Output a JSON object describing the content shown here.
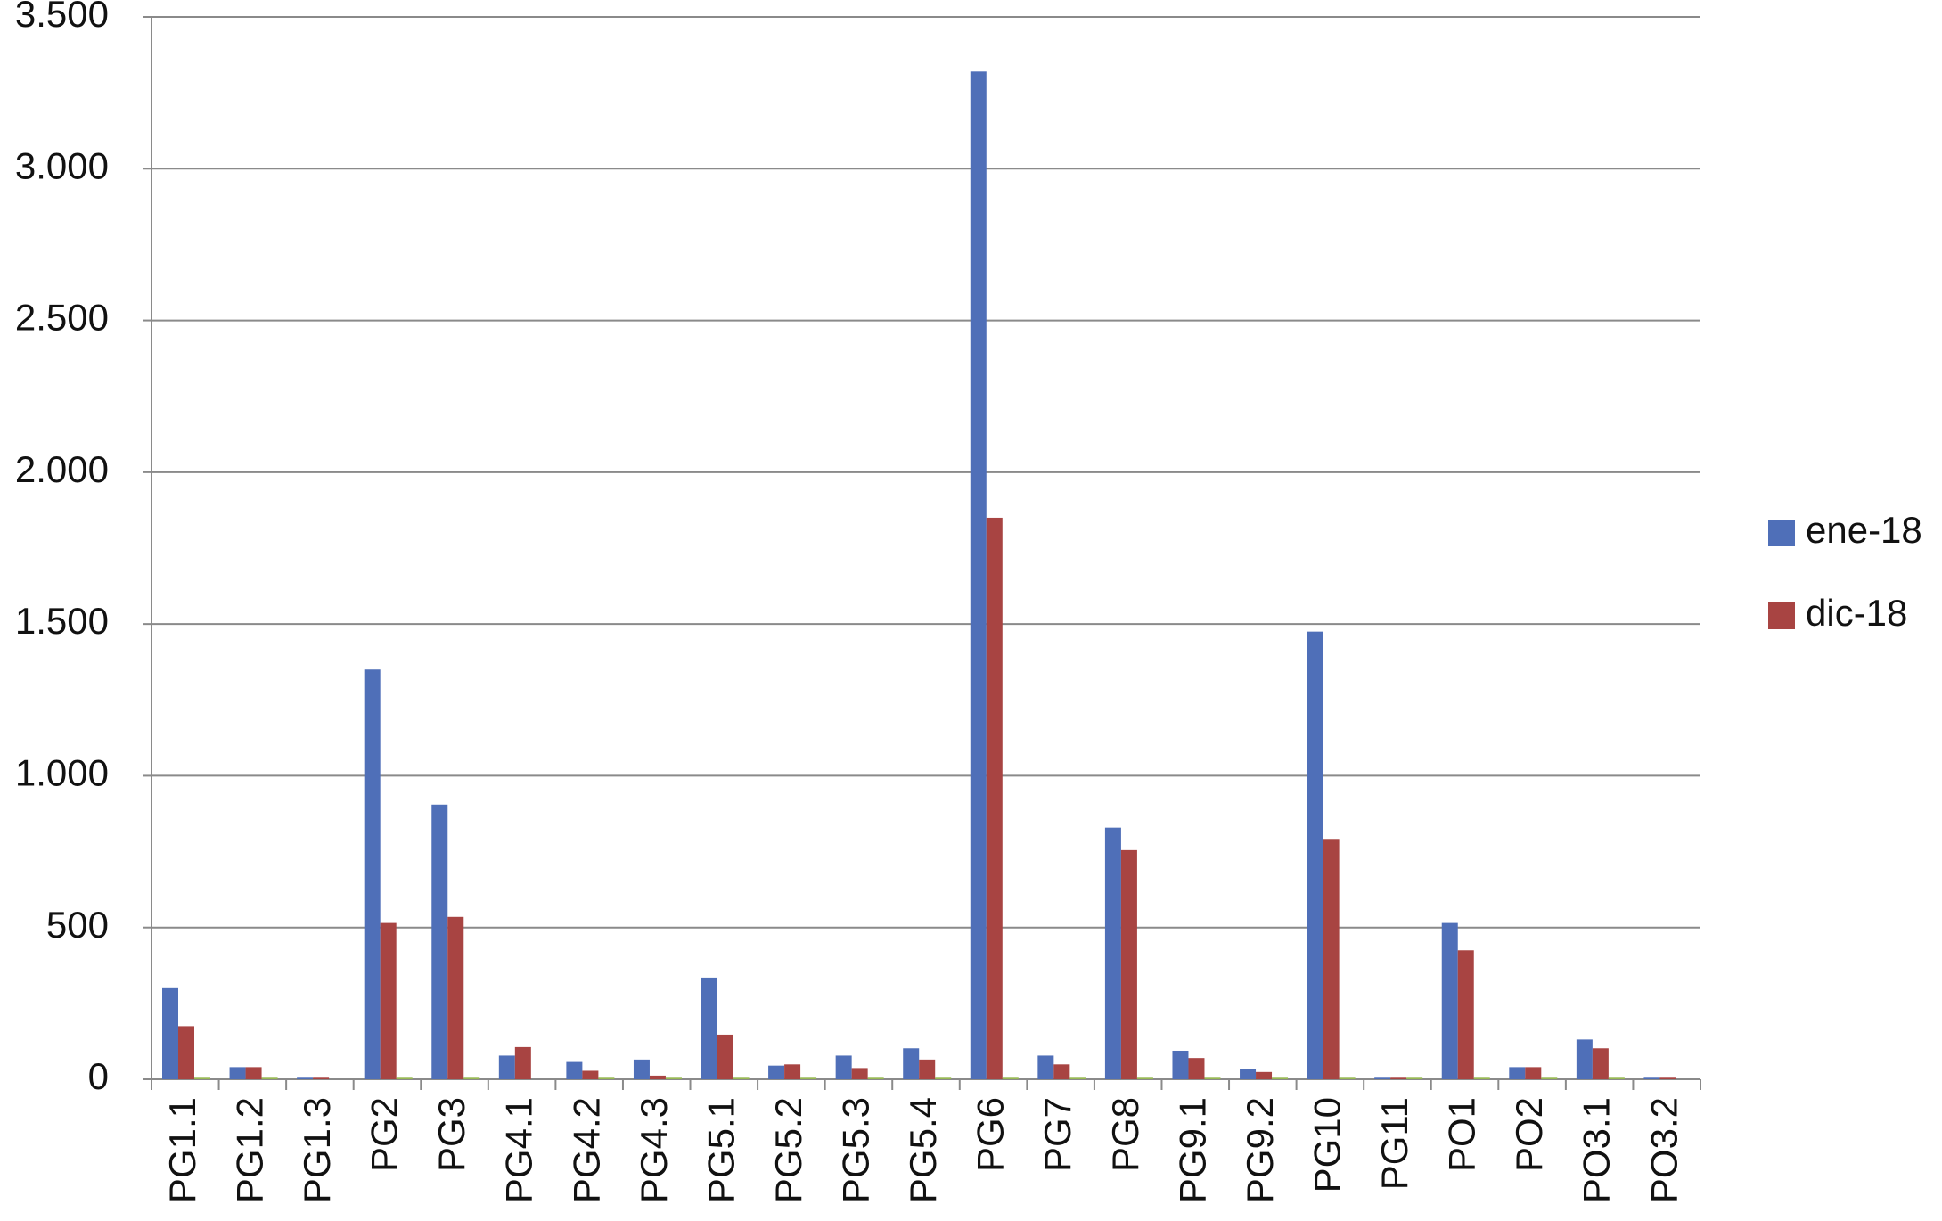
{
  "chart_data": {
    "type": "bar",
    "categories": [
      "PG1.1",
      "PG1.2",
      "PG1.3",
      "PG2",
      "PG3",
      "PG4.1",
      "PG4.2",
      "PG4.3",
      "PG5.1",
      "PG5.2",
      "PG5.3",
      "PG5.4",
      "PG6",
      "PG7",
      "PG8",
      "PG9.1",
      "PG9.2",
      "PG10",
      "PG11",
      "PO1",
      "PO2",
      "PO3.1",
      "PO3.2"
    ],
    "series": [
      {
        "name": "ene-18",
        "color": "#4f6fb8",
        "values": [
          300,
          40,
          8,
          1350,
          905,
          78,
          57,
          65,
          335,
          45,
          78,
          102,
          3320,
          78,
          829,
          94,
          33,
          1475,
          8,
          515,
          40,
          131,
          8
        ]
      },
      {
        "name": "dic-18",
        "color": "#a84442",
        "values": [
          175,
          40,
          8,
          515,
          535,
          106,
          28,
          12,
          147,
          49,
          37,
          65,
          1850,
          49,
          755,
          70,
          24,
          792,
          8,
          425,
          40,
          102,
          8
        ]
      },
      {
        "color": "#98b954",
        "values": [
          8,
          8,
          0,
          8,
          8,
          0,
          8,
          8,
          8,
          8,
          8,
          8,
          8,
          8,
          8,
          8,
          8,
          8,
          8,
          8,
          8,
          8,
          0
        ]
      }
    ],
    "ylim": [
      0,
      3500
    ],
    "yticks": [
      0,
      500,
      {
        "value": 1000,
        "label": "1.000"
      },
      {
        "value": 1500,
        "label": "1.500"
      },
      {
        "value": 2000,
        "label": "2.000"
      },
      {
        "value": 2500,
        "label": "2.500"
      },
      {
        "value": 3000,
        "label": "3.000"
      },
      {
        "value": 3500,
        "label": "3.500"
      }
    ],
    "grid": true,
    "legend": "right"
  }
}
